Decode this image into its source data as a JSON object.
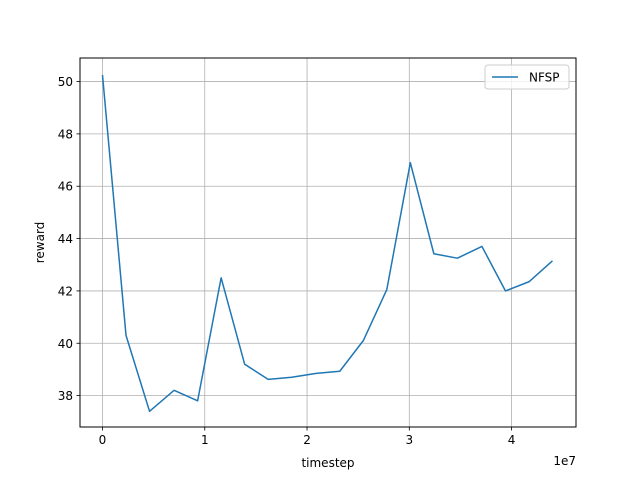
{
  "chart_data": {
    "type": "line",
    "xlabel": "timestep",
    "ylabel": "reward",
    "x_scale_label": "1e7",
    "xlim": [
      -2.2,
      46.3
    ],
    "ylim": [
      36.8,
      50.9
    ],
    "x_tick_values": [
      0,
      10,
      20,
      30,
      40
    ],
    "x_tick_labels": [
      "0",
      "1",
      "2",
      "3",
      "4"
    ],
    "y_ticks": [
      38,
      40,
      42,
      44,
      46,
      48,
      50
    ],
    "grid": true,
    "legend_position": "upper right",
    "series": [
      {
        "name": "NFSP",
        "color": "#1f77b4",
        "x": [
          0,
          2.3,
          4.6,
          7.0,
          9.3,
          11.6,
          13.9,
          16.2,
          18.5,
          20.9,
          23.2,
          25.5,
          27.8,
          30.1,
          32.4,
          34.7,
          37.1,
          39.4,
          41.7,
          44.0
        ],
        "y": [
          50.25,
          40.3,
          37.4,
          38.2,
          37.8,
          42.5,
          39.2,
          38.62,
          38.7,
          38.85,
          38.93,
          40.1,
          42.05,
          46.9,
          43.42,
          43.25,
          43.7,
          42.0,
          42.35,
          43.15
        ]
      }
    ]
  }
}
